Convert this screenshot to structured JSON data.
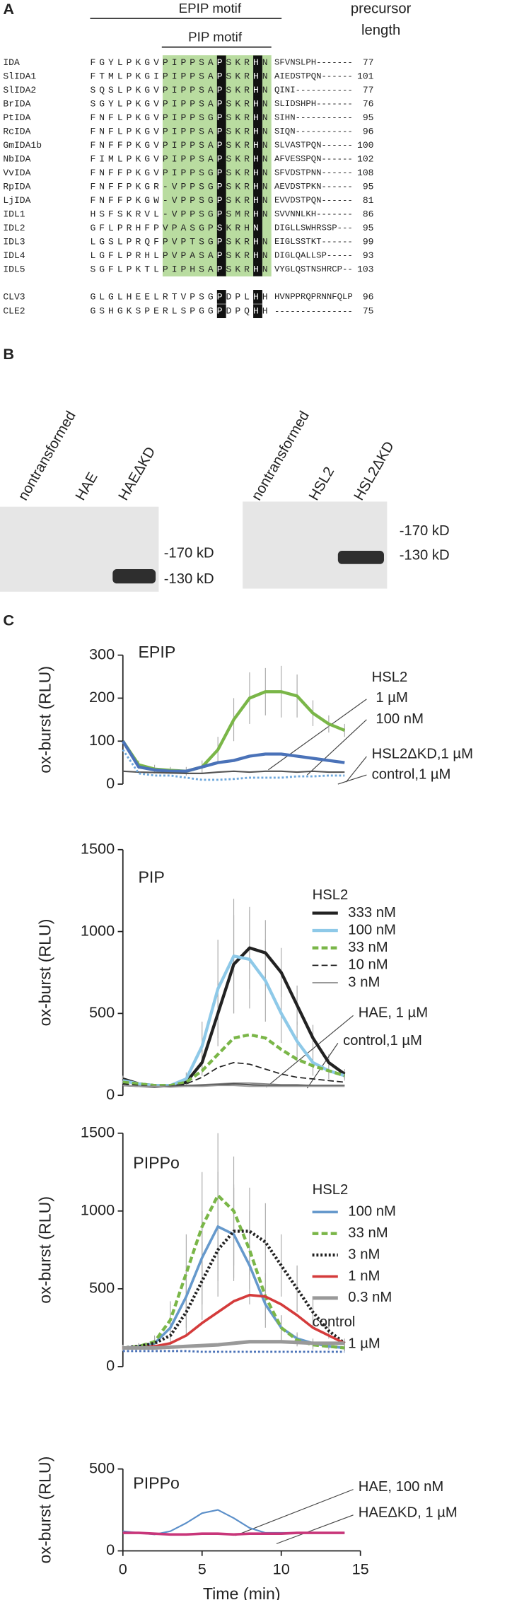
{
  "panel_a": {
    "label": "A",
    "epip": "EPIP motif",
    "pip": "PIP motif",
    "precursor": "precursor",
    "length": "length",
    "rows": [
      {
        "name": "IDA",
        "sequence": "FGYLPKGVPIPPSAPSKRHN",
        "tail": "SFVNSLPH-------",
        "length": 77
      },
      {
        "name": "SlIDA1",
        "sequence": "FTMLPKGIPIPPSAPSKRHN",
        "tail": "AIEDSTPQN------",
        "length": 101
      },
      {
        "name": "SlIDA2",
        "sequence": "SQSLPKGVPIPPSAPSKRHN",
        "tail": "QINI-----------",
        "length": 77
      },
      {
        "name": "BrIDA",
        "sequence": "SGYLPKGVPIPPSAPSKRHN",
        "tail": "SLIDSHPH-------",
        "length": 76
      },
      {
        "name": "PtIDA",
        "sequence": "FNFLPKGVPIPPSGPSKRHN",
        "tail": "SIHN-----------",
        "length": 95
      },
      {
        "name": "RcIDA",
        "sequence": "FNFLPKGVPIPPSAPSKRHN",
        "tail": "SIQN-----------",
        "length": 96
      },
      {
        "name": "GmIDA1b",
        "sequence": "FNFFPKGVPIPPSAPSKRHN",
        "tail": "SLVASTPQN------",
        "length": 100
      },
      {
        "name": "NbIDA",
        "sequence": "FIMLPKGVPIPPSAPSKRHN",
        "tail": "AFVESSPQN------",
        "length": 102
      },
      {
        "name": "VvIDA",
        "sequence": "FNFFPKGVPIPPSGPSKRHN",
        "tail": "SFVDSTPNN------",
        "length": 108
      },
      {
        "name": "RpIDA",
        "sequence": "FNFFPKGR-VPPSGPSKRHN",
        "tail": "AEVDSTPKN------",
        "length": 95
      },
      {
        "name": "LjIDA",
        "sequence": "FNFFPKGW-VPPSGPSKRHN",
        "tail": "EVVDSTPQN------",
        "length": 81
      },
      {
        "name": "IDL1",
        "sequence": "HSFSKRVL-VPPSGPSMRHN",
        "tail": "SVVNNLKH-------",
        "length": 86
      },
      {
        "name": "IDL2",
        "sequence": "GFLPRHFPVPASGPSKRHN",
        "tail": "DIGLLSWHRSSP---",
        "length": 95
      },
      {
        "name": "IDL3",
        "sequence": "LGSLPRQFPVPTSGPSKRHN",
        "tail": "EIGLSSTKT------",
        "length": 99
      },
      {
        "name": "IDL4",
        "sequence": "LGFLPRHLPVPASAPSKRHN",
        "tail": "DIGLQALLSP-----",
        "length": 93
      },
      {
        "name": "IDL5",
        "sequence": "SGFLPKTLPIPHSAPSKRHN",
        "tail": "VYGLQSTNSHRCP--",
        "length": 103
      },
      {
        "name": "CLV3",
        "sequence": "GLGLHEELRTVPSGPDPLHH",
        "tail": "HVNPPRQPRNNFQLP",
        "length": 96
      },
      {
        "name": "CLE2",
        "sequence": "GSHGKSPERLSPGGPDPQHH",
        "tail": "---------------",
        "length": 75
      }
    ]
  },
  "panel_b": {
    "label": "B",
    "blots": [
      {
        "lanes": [
          "nontransformed",
          "HAE",
          "HAEΔKD"
        ],
        "markers": [
          "-170 kD",
          "-130 kD"
        ]
      },
      {
        "lanes": [
          "nontransformed",
          "HSL2",
          "HSL2ΔKD"
        ],
        "markers": [
          "-170 kD",
          "-130 kD"
        ]
      }
    ]
  },
  "panel_c": {
    "label": "C"
  },
  "chart_data": [
    {
      "type": "line",
      "title": "EPIP",
      "ylabel": "ox-burst (RLU)",
      "x": [
        0,
        1,
        2,
        3,
        4,
        5,
        6,
        7,
        8,
        9,
        10,
        11,
        12,
        13,
        14
      ],
      "xlim": [
        0,
        15
      ],
      "ylim": [
        0,
        300
      ],
      "yticks": [
        0,
        100,
        200,
        300
      ],
      "series_groups": [
        {
          "title": "HSL2",
          "legend": false,
          "series": [
            {
              "name": "1 µM",
              "color": "#7ab648",
              "width": 3,
              "line_style": "solid",
              "values": [
                100,
                45,
                35,
                32,
                30,
                40,
                80,
                150,
                200,
                215,
                215,
                205,
                165,
                140,
                125
              ],
              "errors": [
                0,
                10,
                10,
                8,
                10,
                15,
                30,
                50,
                60,
                55,
                60,
                50,
                30,
                20,
                15
              ]
            },
            {
              "name": "100 nM",
              "color": "#4a72b8",
              "width": 3,
              "line_style": "solid",
              "values": [
                100,
                40,
                33,
                30,
                30,
                40,
                50,
                55,
                65,
                70,
                70,
                65,
                60,
                55,
                50
              ]
            }
          ]
        },
        {
          "legend": false,
          "series": [
            {
              "name": "HSL2ΔKD,1 µM",
              "color": "#555555",
              "width": 1.5,
              "line_style": "solid",
              "values": [
                30,
                28,
                27,
                26,
                25,
                25,
                28,
                30,
                28,
                30,
                30,
                28,
                30,
                28,
                28
              ]
            },
            {
              "name": "control,1 µM",
              "color": "#6fa8dc",
              "width": 2,
              "line_style": "dotted",
              "values": [
                80,
                25,
                20,
                20,
                15,
                10,
                10,
                12,
                15,
                15,
                15,
                18,
                18,
                20,
                20
              ]
            }
          ]
        }
      ]
    },
    {
      "type": "line",
      "title": "PIP",
      "ylabel": "ox-burst (RLU)",
      "x": [
        0,
        1,
        2,
        3,
        4,
        5,
        6,
        7,
        8,
        9,
        10,
        11,
        12,
        13,
        14
      ],
      "xlim": [
        0,
        15
      ],
      "ylim": [
        0,
        1500
      ],
      "yticks": [
        0,
        500,
        1000,
        1500
      ],
      "series_groups": [
        {
          "title": "HSL2",
          "legend": true,
          "series": [
            {
              "name": "333 nM",
              "color": "#222222",
              "width": 3,
              "line_style": "solid",
              "values": [
                100,
                70,
                60,
                60,
                80,
                200,
                500,
                800,
                900,
                870,
                750,
                550,
                350,
                200,
                130
              ],
              "errors": [
                20,
                10,
                10,
                10,
                30,
                80,
                200,
                300,
                250,
                200,
                150,
                120,
                80,
                50,
                30
              ]
            },
            {
              "name": "100 nM",
              "color": "#8ec9e8",
              "width": 3,
              "line_style": "solid",
              "values": [
                90,
                70,
                60,
                60,
                100,
                300,
                650,
                850,
                830,
                700,
                500,
                330,
                200,
                150,
                120
              ],
              "errors": [
                20,
                10,
                10,
                10,
                40,
                150,
                300,
                350,
                300,
                250,
                180,
                120,
                80,
                50,
                30
              ]
            },
            {
              "name": "33 nM",
              "color": "#7ab648",
              "width": 3,
              "line_style": "dashed",
              "values": [
                80,
                70,
                60,
                60,
                80,
                150,
                250,
                350,
                370,
                350,
                280,
                220,
                180,
                150,
                120
              ]
            },
            {
              "name": "10 nM",
              "color": "#222222",
              "width": 1.2,
              "line_style": "dashed",
              "values": [
                70,
                60,
                55,
                55,
                70,
                110,
                170,
                200,
                190,
                160,
                130,
                110,
                100,
                90,
                80
              ]
            },
            {
              "name": "3 nM",
              "color": "#888888",
              "width": 1.2,
              "line_style": "solid",
              "values": [
                60,
                55,
                55,
                55,
                60,
                65,
                70,
                75,
                75,
                70,
                65,
                65,
                60,
                60,
                60
              ]
            }
          ]
        },
        {
          "legend": false,
          "series": [
            {
              "name": "HAE, 1 µM",
              "color": "#555555",
              "width": 1.5,
              "line_style": "solid",
              "values": [
                60,
                55,
                50,
                55,
                60,
                60,
                65,
                70,
                65,
                60,
                60,
                60,
                60,
                60,
                60
              ]
            },
            {
              "name": "control,1 µM",
              "color": "#999999",
              "width": 1.2,
              "line_style": "solid",
              "values": [
                60,
                55,
                55,
                50,
                55,
                55,
                60,
                60,
                55,
                55,
                55,
                55,
                55,
                55,
                55
              ]
            }
          ]
        }
      ]
    },
    {
      "type": "line",
      "title": "PIPPo",
      "ylabel": "ox-burst (RLU)",
      "x": [
        0,
        1,
        2,
        3,
        4,
        5,
        6,
        7,
        8,
        9,
        10,
        11,
        12,
        13,
        14
      ],
      "xlim": [
        0,
        15
      ],
      "ylim": [
        0,
        1500
      ],
      "yticks": [
        0,
        500,
        1000,
        1500
      ],
      "series_groups": [
        {
          "title": "HSL2",
          "legend": true,
          "series": [
            {
              "name": "100 nM",
              "color": "#6699cc",
              "width": 2.5,
              "line_style": "solid",
              "values": [
                120,
                130,
                150,
                250,
                450,
                700,
                900,
                850,
                650,
                400,
                250,
                180,
                150,
                130,
                120
              ],
              "errors": [
                20,
                20,
                30,
                80,
                200,
                300,
                350,
                300,
                250,
                150,
                80,
                40,
                30,
                20,
                20
              ]
            },
            {
              "name": "33 nM",
              "color": "#7ab648",
              "width": 3,
              "line_style": "dashed",
              "values": [
                120,
                130,
                160,
                300,
                600,
                900,
                1100,
                1000,
                750,
                450,
                250,
                170,
                140,
                130,
                120
              ],
              "errors": [
                20,
                20,
                40,
                120,
                250,
                350,
                400,
                350,
                250,
                150,
                80,
                40,
                30,
                20,
                20
              ]
            },
            {
              "name": "3 nM",
              "color": "#222222",
              "width": 3,
              "line_style": "dotted",
              "values": [
                120,
                130,
                150,
                200,
                350,
                550,
                750,
                870,
                870,
                800,
                650,
                500,
                350,
                230,
                150
              ],
              "errors": [
                20,
                20,
                30,
                60,
                150,
                250,
                300,
                300,
                280,
                250,
                200,
                150,
                100,
                50,
                30
              ]
            },
            {
              "name": "1 nM",
              "color": "#d43b3b",
              "width": 2.5,
              "line_style": "solid",
              "values": [
                120,
                120,
                130,
                150,
                200,
                280,
                350,
                420,
                460,
                450,
                400,
                330,
                250,
                200,
                150
              ]
            },
            {
              "name": "0.3 nM",
              "color": "#999999",
              "width": 3.5,
              "line_style": "solid",
              "values": [
                120,
                120,
                120,
                125,
                130,
                135,
                140,
                150,
                160,
                160,
                160,
                155,
                150,
                150,
                150
              ]
            }
          ]
        },
        {
          "title": "control",
          "legend": true,
          "series": [
            {
              "name": "1 µM",
              "color": "#4a72b8",
              "width": 2,
              "line_style": "dotted",
              "values": [
                100,
                100,
                100,
                100,
                100,
                95,
                95,
                95,
                95,
                95,
                95,
                95,
                95,
                95,
                95
              ]
            }
          ]
        }
      ]
    },
    {
      "type": "line",
      "title": "PIPPo",
      "ylabel": "ox-burst (RLU)",
      "xlabel": "Time (min)",
      "x": [
        0,
        1,
        2,
        3,
        4,
        5,
        6,
        7,
        8,
        9,
        10,
        11,
        12,
        13,
        14
      ],
      "xlim": [
        0,
        15
      ],
      "xticks": [
        0,
        5,
        10,
        15
      ],
      "ylim": [
        0,
        500
      ],
      "yticks": [
        0,
        500
      ],
      "series_groups": [
        {
          "legend": false,
          "series": [
            {
              "name": "HAE, 100 nM",
              "color": "#5b8fc9",
              "width": 1.5,
              "line_style": "solid",
              "values": [
                120,
                110,
                100,
                120,
                170,
                230,
                250,
                200,
                140,
                110,
                110,
                110,
                110,
                110,
                110
              ]
            },
            {
              "name": "HAEΔKD, 1 µM",
              "color": "#c8367a",
              "width": 2.5,
              "line_style": "solid",
              "values": [
                110,
                110,
                105,
                100,
                100,
                105,
                105,
                100,
                105,
                105,
                105,
                110,
                110,
                110,
                110
              ]
            }
          ]
        }
      ]
    }
  ]
}
